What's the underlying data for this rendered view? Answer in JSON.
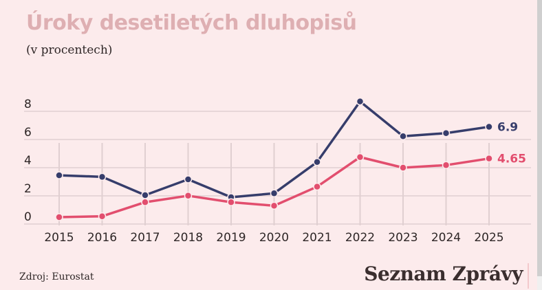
{
  "header": {
    "title": "Úroky desetiletých dluhopisů",
    "subtitle": "(v procentech)"
  },
  "footer": {
    "source": "Zdroj: Eurostat",
    "brand": "Seznam Zprávy"
  },
  "colors": {
    "background": "#fcebec",
    "title": "#deafb2",
    "series_blue": "#363d6b",
    "series_red": "#e24e6e",
    "grid": "#e0cfd1"
  },
  "chart_data": {
    "type": "line",
    "title": "Úroky desetiletých dluhopisů",
    "subtitle": "(v procentech)",
    "xlabel": "",
    "ylabel": "",
    "ylim": [
      0,
      8
    ],
    "y_ticks": [
      "0",
      "2",
      "4",
      "6",
      "8"
    ],
    "x": [
      "2015",
      "2016",
      "2017",
      "2018",
      "2019",
      "2020",
      "2021",
      "2022",
      "2023",
      "2024",
      "2025"
    ],
    "grid": true,
    "legend": "none (end-of-line value labels)",
    "series": [
      {
        "name": "series-blue",
        "color": "#363d6b",
        "values": [
          3.46,
          3.35,
          2.05,
          3.17,
          1.9,
          2.18,
          4.4,
          8.7,
          6.23,
          6.45,
          6.9
        ],
        "end_label": "6.9"
      },
      {
        "name": "series-red",
        "color": "#e24e6e",
        "values": [
          0.49,
          0.55,
          1.55,
          2.01,
          1.55,
          1.3,
          2.65,
          4.75,
          4.0,
          4.18,
          4.65
        ],
        "end_label": "4.65"
      }
    ],
    "source": "Zdroj: Eurostat"
  }
}
